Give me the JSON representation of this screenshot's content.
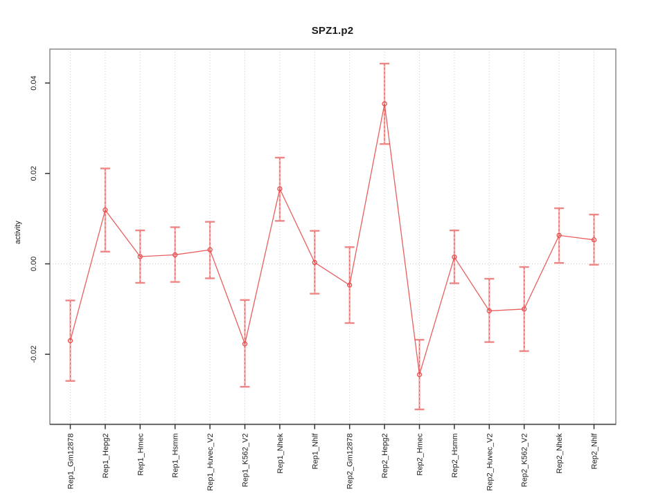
{
  "chart_data": {
    "type": "line",
    "title": "SPZ1.p2",
    "xlabel": "",
    "ylabel": "activity",
    "legend_position": "none",
    "grid": "vertical dotted gridlines at each category plus dotted horizontal line at y=0",
    "categories": [
      "Rep1_Gm12878",
      "Rep1_Hepg2",
      "Rep1_Hmec",
      "Rep1_Hsmm",
      "Rep1_Huvec_V2",
      "Rep1_K562_V2",
      "Rep1_Nhek",
      "Rep1_Nhlf",
      "Rep2_Gm12878",
      "Rep2_Hepg2",
      "Rep2_Hmec",
      "Rep2_Hsmm",
      "Rep2_Huvec_V2",
      "Rep2_K562_V2",
      "Rep2_Nhek",
      "Rep2_Nhlf"
    ],
    "series": [
      {
        "name": "activity",
        "values": [
          -0.017,
          0.0119,
          0.0016,
          0.002,
          0.0031,
          -0.0177,
          0.0166,
          0.0003,
          -0.0047,
          0.0354,
          -0.0245,
          0.0015,
          -0.0104,
          -0.01,
          0.0063,
          0.0053
        ],
        "lower": [
          -0.0259,
          0.0027,
          -0.0042,
          -0.004,
          -0.0032,
          -0.0272,
          0.0095,
          -0.0066,
          -0.0131,
          0.0265,
          -0.0322,
          -0.0043,
          -0.0173,
          -0.0193,
          0.0002,
          -0.0002
        ],
        "upper": [
          -0.0081,
          0.0211,
          0.0074,
          0.0081,
          0.0093,
          -0.008,
          0.0235,
          0.0073,
          0.0037,
          0.0443,
          -0.0168,
          0.0074,
          -0.0033,
          -0.0007,
          0.0123,
          0.0109
        ]
      }
    ],
    "ylim": [
      -0.0355,
      0.0475
    ],
    "yticks": [
      -0.02,
      0,
      0.02,
      0.04
    ],
    "ytick_labels": [
      "-0.02",
      "0.00",
      "0.02",
      "0.04"
    ],
    "colors": {
      "line": "#e74c4c",
      "point": "#e74c4c",
      "error_dash": "#e74c4c",
      "error_band": "#f6aaaa",
      "cap": "#f08585",
      "grid": "#cccccc",
      "zero_line": "#c8c8c8",
      "box": "#909090",
      "bottom_axis": "#454545",
      "tick": "#333333",
      "text": "#1a1a1a"
    }
  }
}
